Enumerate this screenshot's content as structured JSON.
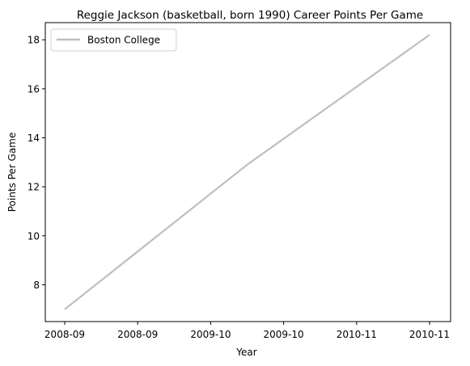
{
  "chart_data": {
    "type": "line",
    "title": "Reggie Jackson (basketball, born 1990) Career Points Per Game",
    "xlabel": "Year",
    "ylabel": "Points Per Game",
    "x_ticks": [
      "2008-09",
      "2008-09",
      "2009-10",
      "2009-10",
      "2010-11",
      "2010-11"
    ],
    "x_range": [
      0,
      2
    ],
    "ylim": [
      6.5,
      18.7
    ],
    "y_ticks": [
      8,
      10,
      12,
      14,
      16,
      18
    ],
    "grid": false,
    "legend_position": "top-left",
    "series": [
      {
        "name": "Boston College",
        "color": "#bfbfbf",
        "points": [
          {
            "x": "2008-09",
            "y": 7.0
          },
          {
            "x": "2009-10",
            "y": 12.9
          },
          {
            "x": "2010-11",
            "y": 18.2
          }
        ]
      }
    ]
  }
}
